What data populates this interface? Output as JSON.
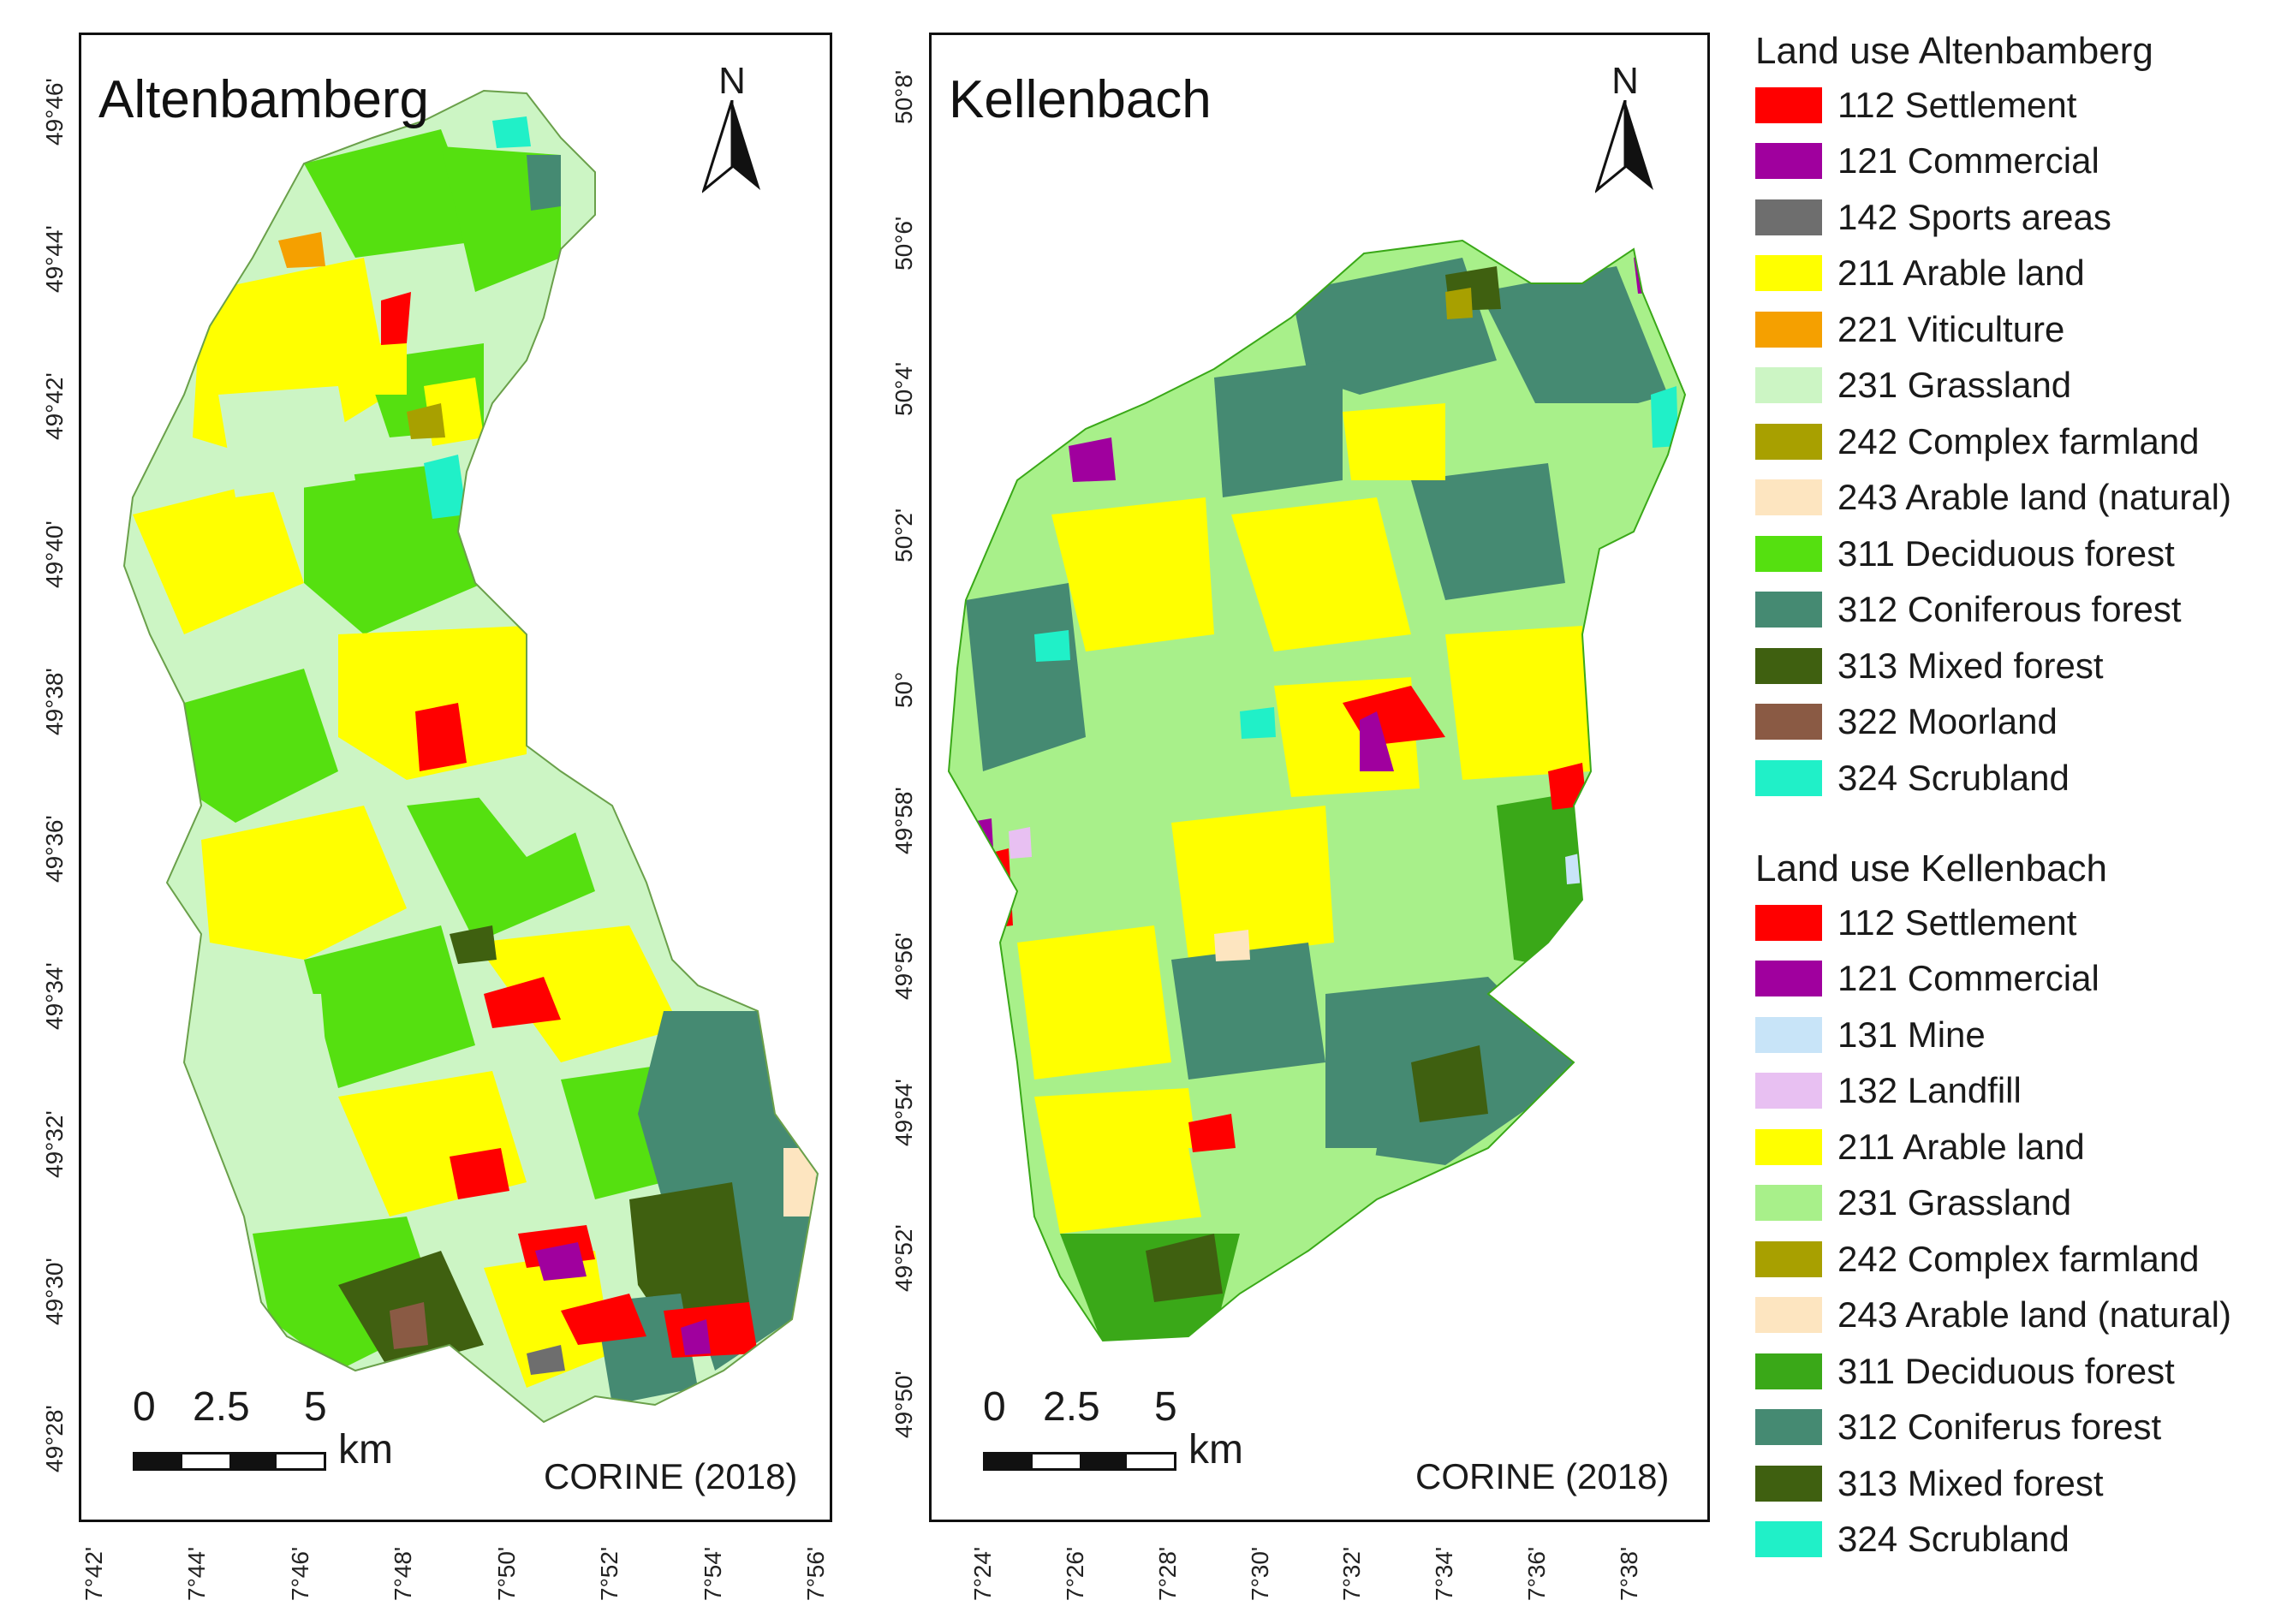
{
  "maps": {
    "altenbamberg": {
      "title": "Altenbamberg",
      "north": "N",
      "scale": {
        "labels": [
          "0",
          "2.5",
          "5"
        ],
        "unit": "km"
      },
      "source": "CORINE (2018)",
      "lat_ticks": [
        "49°28'",
        "49°30'",
        "49°32'",
        "49°34'",
        "49°36'",
        "49°38'",
        "49°40'",
        "49°42'",
        "49°44'",
        "49°46'"
      ],
      "lon_ticks": [
        "7°42'",
        "7°44'",
        "7°46'",
        "7°48'",
        "7°50'",
        "7°52'",
        "7°54'",
        "7°56'"
      ]
    },
    "kellenbach": {
      "title": "Kellenbach",
      "north": "N",
      "scale": {
        "labels": [
          "0",
          "2.5",
          "5"
        ],
        "unit": "km"
      },
      "source": "CORINE (2018)",
      "lat_ticks": [
        "49°50'",
        "49°52'",
        "49°54'",
        "49°56'",
        "49°58'",
        "50°",
        "50°2'",
        "50°4'",
        "50°6'",
        "50°8'"
      ],
      "lon_ticks": [
        "7°24'",
        "7°26'",
        "7°28'",
        "7°30'",
        "7°32'",
        "7°34'",
        "7°36'",
        "7°38'"
      ]
    }
  },
  "legends": {
    "altenbamberg": {
      "title": "Land use Altenbamberg",
      "items": [
        {
          "label": "112 Settlement",
          "color": "#ff0000"
        },
        {
          "label": "121 Commercial",
          "color": "#a0009e"
        },
        {
          "label": "142 Sports areas",
          "color": "#6e6e6e"
        },
        {
          "label": "211 Arable land",
          "color": "#ffff00"
        },
        {
          "label": "221 Viticulture",
          "color": "#f5a000"
        },
        {
          "label": "231 Grassland",
          "color": "#ccf5c4"
        },
        {
          "label": "242 Complex farmland",
          "color": "#a8a000"
        },
        {
          "label": "243 Arable land (natural)",
          "color": "#fde5c0"
        },
        {
          "label": "311 Deciduous forest",
          "color": "#55e010"
        },
        {
          "label": "312 Coniferous forest",
          "color": "#458a72"
        },
        {
          "label": "313 Mixed forest",
          "color": "#3f6010"
        },
        {
          "label": "322 Moorland",
          "color": "#8a5a44"
        },
        {
          "label": "324 Scrubland",
          "color": "#20f0c8"
        }
      ]
    },
    "kellenbach": {
      "title": "Land use Kellenbach",
      "items": [
        {
          "label": "112 Settlement",
          "color": "#ff0000"
        },
        {
          "label": "121 Commercial",
          "color": "#a0009e"
        },
        {
          "label": "131 Mine",
          "color": "#c8e4f8"
        },
        {
          "label": "132 Landfill",
          "color": "#e8c0f2"
        },
        {
          "label": "211 Arable land",
          "color": "#ffff00"
        },
        {
          "label": "231 Grassland",
          "color": "#a8f08a"
        },
        {
          "label": "242 Complex farmland",
          "color": "#a8a000"
        },
        {
          "label": "243 Arable land (natural)",
          "color": "#fde5c0"
        },
        {
          "label": "311 Deciduous forest",
          "color": "#3aa818"
        },
        {
          "label": "312 Coniferus forest",
          "color": "#458a72"
        },
        {
          "label": "313 Mixed forest",
          "color": "#3f6010"
        },
        {
          "label": "324 Scrubland",
          "color": "#20f0c8"
        }
      ]
    }
  }
}
